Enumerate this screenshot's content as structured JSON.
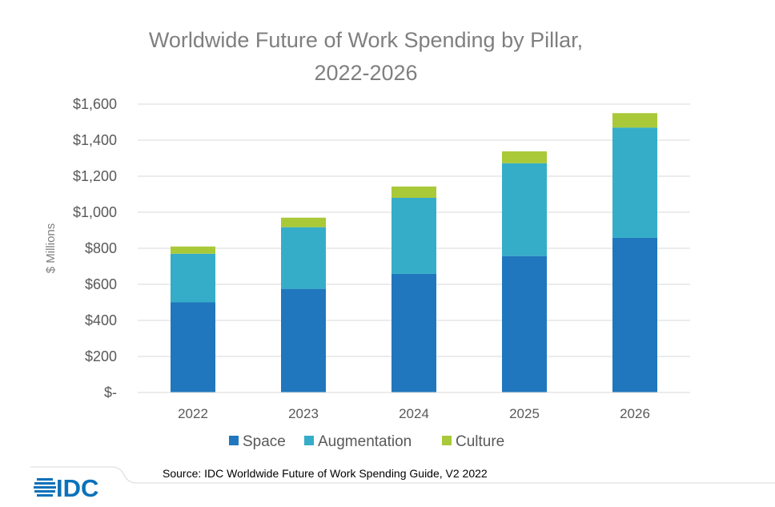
{
  "chart_data": {
    "type": "bar",
    "stacked": true,
    "title": [
      "Worldwide Future of Work Spending by Pillar,",
      "2022-2026"
    ],
    "categories": [
      "2022",
      "2023",
      "2024",
      "2025",
      "2026"
    ],
    "series": [
      {
        "name": "Space",
        "color": "#2077bd",
        "values": [
          500,
          575,
          658,
          757,
          858
        ]
      },
      {
        "name": "Augmentation",
        "color": "#35adc8",
        "values": [
          270,
          342,
          422,
          515,
          612
        ]
      },
      {
        "name": "Culture",
        "color": "#a9c939",
        "values": [
          40,
          53,
          63,
          66,
          80
        ]
      }
    ],
    "ylabel": "$ Millions",
    "ylim": [
      0,
      1600
    ],
    "yticks": [
      0,
      200,
      400,
      600,
      800,
      1000,
      1200,
      1400,
      1600
    ],
    "ytick_labels": [
      "$-",
      "$200",
      "$400",
      "$600",
      "$800",
      "$1,000",
      "$1,200",
      "$1,400",
      "$1,600"
    ],
    "grid": true,
    "legend_position": "bottom"
  },
  "source": "Source:  IDC Worldwide Future of Work Spending Guide, V2 2022",
  "logo": {
    "text": "IDC",
    "color": "#0c71b9"
  }
}
